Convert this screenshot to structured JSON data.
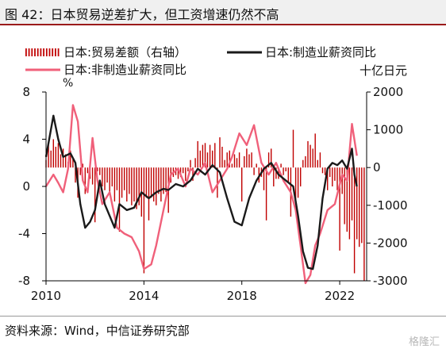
{
  "title": "图 42：日本贸易逆差扩大，但工资增速仍然不高",
  "source": "资料来源：Wind，中信证券研究部",
  "watermark": "格隆汇",
  "chart_data": {
    "type": "bar+line",
    "left_axis": {
      "unit": "%",
      "min": -8,
      "max": 8,
      "ticks": [
        8,
        4,
        0,
        -4,
        -8
      ]
    },
    "right_axis": {
      "unit": "十亿日元",
      "min": -3000,
      "max": 2000,
      "ticks": [
        2000,
        1000,
        0,
        -1000,
        -2000,
        -3000
      ]
    },
    "x_axis": {
      "ticks": [
        "2010",
        "2014",
        "2018",
        "2022"
      ],
      "start": 2010.0,
      "end": 2023.1
    },
    "legend": [
      {
        "name": "日本:贸易差额（右轴）",
        "type": "bar",
        "color": "#c00000"
      },
      {
        "name": "日本:制造业薪资同比",
        "type": "line",
        "color": "#1a1a1a"
      },
      {
        "name": "日本:非制造业薪资同比",
        "type": "line",
        "color": "#f0607a"
      }
    ],
    "manufacturing_wage_yoy": [
      [
        2010.0,
        2.5
      ],
      [
        2010.3,
        6.0
      ],
      [
        2010.5,
        4.0
      ],
      [
        2010.7,
        2.5
      ],
      [
        2011.0,
        2.8
      ],
      [
        2011.2,
        2.0
      ],
      [
        2011.4,
        -1.5
      ],
      [
        2011.6,
        -3.5
      ],
      [
        2011.8,
        -3.0
      ],
      [
        2012.0,
        -2.0
      ],
      [
        2012.2,
        0.5
      ],
      [
        2012.4,
        -1.5
      ],
      [
        2012.6,
        -2.5
      ],
      [
        2012.8,
        -3.5
      ],
      [
        2013.0,
        -1.5
      ],
      [
        2013.3,
        -2.0
      ],
      [
        2013.6,
        -1.8
      ],
      [
        2013.9,
        -0.5
      ],
      [
        2014.2,
        -1.0
      ],
      [
        2014.5,
        -0.5
      ],
      [
        2014.8,
        -0.2
      ],
      [
        2015.0,
        -0.3
      ],
      [
        2015.3,
        0.2
      ],
      [
        2015.6,
        0.0
      ],
      [
        2015.9,
        0.5
      ],
      [
        2016.2,
        1.5
      ],
      [
        2016.5,
        1.0
      ],
      [
        2016.8,
        1.8
      ],
      [
        2017.1,
        1.2
      ],
      [
        2017.4,
        -1.0
      ],
      [
        2017.7,
        -3.0
      ],
      [
        2018.0,
        -3.3
      ],
      [
        2018.3,
        -1.0
      ],
      [
        2018.6,
        0.5
      ],
      [
        2018.9,
        1.5
      ],
      [
        2019.2,
        2.0
      ],
      [
        2019.5,
        1.0
      ],
      [
        2019.8,
        0.5
      ],
      [
        2020.1,
        0.0
      ],
      [
        2020.3,
        -2.5
      ],
      [
        2020.5,
        -5.5
      ],
      [
        2020.7,
        -6.9
      ],
      [
        2020.9,
        -7.0
      ],
      [
        2021.1,
        -5.0
      ],
      [
        2021.3,
        -1.0
      ],
      [
        2021.5,
        1.5
      ],
      [
        2021.7,
        2.0
      ],
      [
        2021.9,
        1.8
      ],
      [
        2022.1,
        2.2
      ],
      [
        2022.3,
        1.5
      ],
      [
        2022.5,
        3.2
      ],
      [
        2022.6,
        1.0
      ],
      [
        2022.7,
        0.0
      ]
    ],
    "non_manufacturing_wage_yoy": [
      [
        2010.0,
        0.0
      ],
      [
        2010.3,
        1.0
      ],
      [
        2010.5,
        0.3
      ],
      [
        2010.7,
        -0.5
      ],
      [
        2010.9,
        1.5
      ],
      [
        2011.1,
        6.9
      ],
      [
        2011.3,
        5.5
      ],
      [
        2011.5,
        0.5
      ],
      [
        2011.7,
        -0.5
      ],
      [
        2011.9,
        4.1
      ],
      [
        2012.1,
        0.5
      ],
      [
        2012.3,
        -1.5
      ],
      [
        2012.6,
        -0.5
      ],
      [
        2012.9,
        -3.5
      ],
      [
        2013.2,
        -4.0
      ],
      [
        2013.5,
        -4.3
      ],
      [
        2013.8,
        -5.5
      ],
      [
        2014.0,
        -7.0
      ],
      [
        2014.3,
        -6.6
      ],
      [
        2014.5,
        -5.0
      ],
      [
        2014.8,
        -2.0
      ],
      [
        2015.1,
        1.0
      ],
      [
        2015.4,
        1.5
      ],
      [
        2015.7,
        0.0
      ],
      [
        2015.9,
        1.5
      ],
      [
        2016.2,
        1.0
      ],
      [
        2016.5,
        2.0
      ],
      [
        2016.8,
        -0.5
      ],
      [
        2017.1,
        0.5
      ],
      [
        2017.4,
        1.5
      ],
      [
        2017.6,
        2.5
      ],
      [
        2017.9,
        4.5
      ],
      [
        2018.2,
        3.5
      ],
      [
        2018.5,
        5.2
      ],
      [
        2018.8,
        2.0
      ],
      [
        2019.1,
        1.0
      ],
      [
        2019.4,
        2.0
      ],
      [
        2019.7,
        0.5
      ],
      [
        2020.0,
        -0.5
      ],
      [
        2020.2,
        -2.0
      ],
      [
        2020.4,
        -5.0
      ],
      [
        2020.6,
        -8.2
      ],
      [
        2020.8,
        -7.5
      ],
      [
        2021.0,
        -5.0
      ],
      [
        2021.2,
        -4.0
      ],
      [
        2021.5,
        -2.0
      ],
      [
        2021.8,
        -1.5
      ],
      [
        2022.1,
        1.0
      ],
      [
        2022.3,
        0.5
      ],
      [
        2022.5,
        5.3
      ],
      [
        2022.7,
        2.6
      ]
    ],
    "trade_balance": [
      [
        2010.0,
        200
      ],
      [
        2010.1,
        600
      ],
      [
        2010.2,
        450
      ],
      [
        2010.3,
        750
      ],
      [
        2010.4,
        550
      ],
      [
        2010.5,
        650
      ],
      [
        2010.6,
        350
      ],
      [
        2010.7,
        500
      ],
      [
        2010.8,
        350
      ],
      [
        2010.9,
        150
      ],
      [
        2011.0,
        450
      ],
      [
        2011.1,
        250
      ],
      [
        2011.2,
        -400
      ],
      [
        2011.3,
        -800
      ],
      [
        2011.4,
        -200
      ],
      [
        2011.5,
        100
      ],
      [
        2011.6,
        -700
      ],
      [
        2011.7,
        -150
      ],
      [
        2011.8,
        -300
      ],
      [
        2011.9,
        -450
      ],
      [
        2012.0,
        -1450
      ],
      [
        2012.1,
        -100
      ],
      [
        2012.2,
        -200
      ],
      [
        2012.3,
        -500
      ],
      [
        2012.4,
        -600
      ],
      [
        2012.5,
        -400
      ],
      [
        2012.6,
        -700
      ],
      [
        2012.7,
        -500
      ],
      [
        2012.8,
        -900
      ],
      [
        2012.9,
        -600
      ],
      [
        2013.0,
        -1700
      ],
      [
        2013.1,
        -800
      ],
      [
        2013.2,
        -600
      ],
      [
        2013.3,
        -900
      ],
      [
        2013.4,
        -700
      ],
      [
        2013.5,
        -1000
      ],
      [
        2013.6,
        -900
      ],
      [
        2013.7,
        -1100
      ],
      [
        2013.8,
        -1000
      ],
      [
        2013.9,
        -1300
      ],
      [
        2014.0,
        -2800
      ],
      [
        2014.1,
        -800
      ],
      [
        2014.2,
        -1400
      ],
      [
        2014.3,
        -800
      ],
      [
        2014.4,
        -900
      ],
      [
        2014.5,
        -1000
      ],
      [
        2014.6,
        -700
      ],
      [
        2014.7,
        -900
      ],
      [
        2014.8,
        -700
      ],
      [
        2014.9,
        -650
      ],
      [
        2015.0,
        -1200
      ],
      [
        2015.1,
        -400
      ],
      [
        2015.2,
        -250
      ],
      [
        2015.3,
        -200
      ],
      [
        2015.4,
        -300
      ],
      [
        2015.5,
        -250
      ],
      [
        2015.6,
        -150
      ],
      [
        2015.7,
        -350
      ],
      [
        2015.8,
        -100
      ],
      [
        2015.9,
        200
      ],
      [
        2016.0,
        -350
      ],
      [
        2016.1,
        250
      ],
      [
        2016.2,
        700
      ],
      [
        2016.3,
        450
      ],
      [
        2016.4,
        600
      ],
      [
        2016.5,
        650
      ],
      [
        2016.6,
        400
      ],
      [
        2016.7,
        600
      ],
      [
        2016.8,
        450
      ],
      [
        2016.9,
        650
      ],
      [
        2017.0,
        -800
      ],
      [
        2017.1,
        800
      ],
      [
        2017.2,
        550
      ],
      [
        2017.3,
        200
      ],
      [
        2017.4,
        400
      ],
      [
        2017.5,
        450
      ],
      [
        2017.6,
        100
      ],
      [
        2017.7,
        350
      ],
      [
        2017.8,
        250
      ],
      [
        2017.9,
        400
      ],
      [
        2018.0,
        -900
      ],
      [
        2018.1,
        300
      ],
      [
        2018.2,
        500
      ],
      [
        2018.3,
        350
      ],
      [
        2018.4,
        400
      ],
      [
        2018.5,
        -200
      ],
      [
        2018.6,
        100
      ],
      [
        2018.7,
        -400
      ],
      [
        2018.8,
        -250
      ],
      [
        2018.9,
        -600
      ],
      [
        2019.0,
        -1400
      ],
      [
        2019.1,
        400
      ],
      [
        2019.2,
        500
      ],
      [
        2019.3,
        -500
      ],
      [
        2019.4,
        -300
      ],
      [
        2019.5,
        -300
      ],
      [
        2019.6,
        100
      ],
      [
        2019.7,
        -200
      ],
      [
        2019.8,
        -100
      ],
      [
        2019.9,
        -400
      ],
      [
        2020.0,
        -1300
      ],
      [
        2020.1,
        1000
      ],
      [
        2020.2,
        -900
      ],
      [
        2020.3,
        -800
      ],
      [
        2020.4,
        -500
      ],
      [
        2020.5,
        200
      ],
      [
        2020.6,
        300
      ],
      [
        2020.7,
        700
      ],
      [
        2020.8,
        600
      ],
      [
        2020.9,
        500
      ],
      [
        2021.0,
        900
      ],
      [
        2021.1,
        200
      ],
      [
        2021.2,
        400
      ],
      [
        2021.3,
        -150
      ],
      [
        2021.4,
        -200
      ],
      [
        2021.5,
        -600
      ],
      [
        2021.6,
        -250
      ],
      [
        2021.7,
        -500
      ],
      [
        2021.8,
        -350
      ],
      [
        2021.9,
        -600
      ],
      [
        2022.0,
        -2200
      ],
      [
        2022.1,
        -700
      ],
      [
        2022.2,
        -1500
      ],
      [
        2022.3,
        -1700
      ],
      [
        2022.4,
        -1900
      ],
      [
        2022.5,
        -1400
      ],
      [
        2022.6,
        -2800
      ],
      [
        2022.7,
        -1900
      ],
      [
        2022.8,
        -2100
      ],
      [
        2022.9,
        -2000
      ],
      [
        2023.0,
        -3500
      ]
    ]
  }
}
